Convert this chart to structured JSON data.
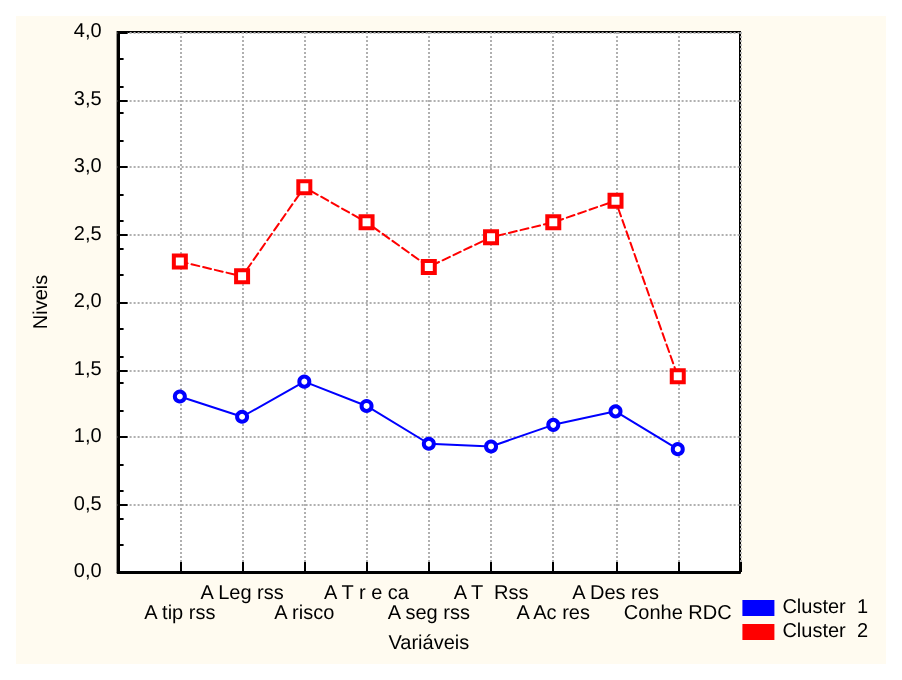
{
  "chart_data": {
    "type": "line",
    "xlabel": "Variáveis",
    "ylabel": "Niveis",
    "categories": [
      "A tip rss",
      "A Leg rss",
      "A risco",
      "A T r e ca",
      "A seg rss",
      "A T  Rss",
      "A Ac res",
      "A Des res",
      "Conhe RDC"
    ],
    "series": [
      {
        "name": "Cluster  1",
        "color": "#0000ff",
        "marker": "circle",
        "line_style": "solid",
        "values": [
          1.3,
          1.15,
          1.41,
          1.23,
          0.95,
          0.93,
          1.09,
          1.19,
          0.91
        ]
      },
      {
        "name": "Cluster  2",
        "color": "#ff0000",
        "marker": "square",
        "line_style": "dashed",
        "values": [
          2.3,
          2.19,
          2.85,
          2.59,
          2.26,
          2.48,
          2.59,
          2.75,
          1.45
        ]
      }
    ],
    "ylim": [
      0,
      4
    ],
    "yticks": [
      {
        "value": 0,
        "label": "0,0"
      },
      {
        "value": 0.5,
        "label": "0,5"
      },
      {
        "value": 1,
        "label": "1,0"
      },
      {
        "value": 1.5,
        "label": "1,5"
      },
      {
        "value": 2,
        "label": "2,0"
      },
      {
        "value": 2.5,
        "label": "2,5"
      },
      {
        "value": 3,
        "label": "3,0"
      },
      {
        "value": 3.5,
        "label": "3,5"
      },
      {
        "value": 4,
        "label": "4,0"
      }
    ],
    "grid": true,
    "legend": "bottom right"
  }
}
